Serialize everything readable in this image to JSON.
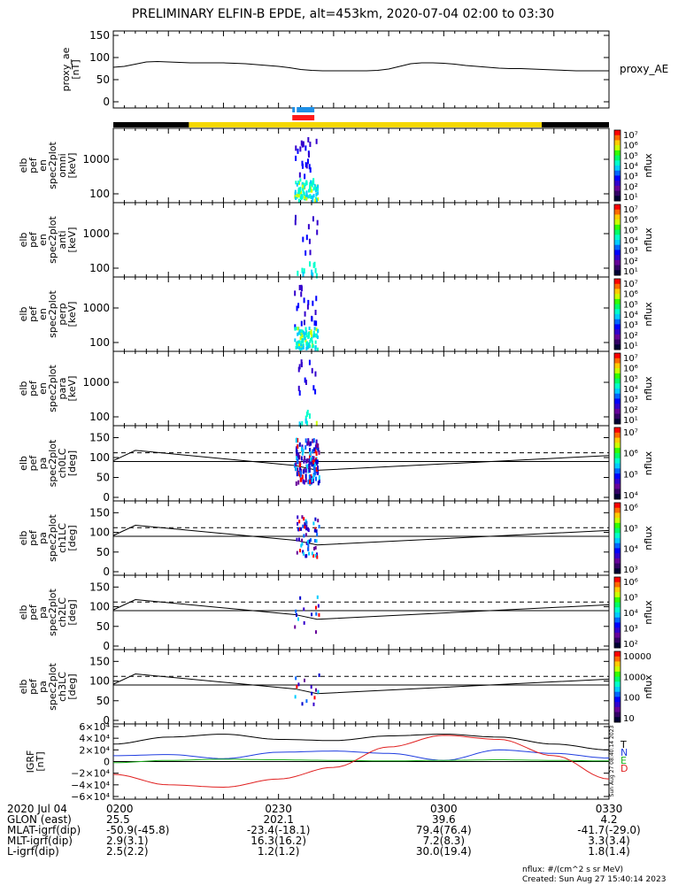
{
  "title": "PRELIMINARY ELFIN-B EPDE, alt=453km, 2020-07-04 02:00 to 03:30",
  "proxy_panel": {
    "ylabel_lines": [
      "proxy_ae",
      "[nT]"
    ],
    "yticks": [
      "150",
      "100",
      "50",
      "0"
    ],
    "right_label": "proxy_AE",
    "series": {
      "x": [
        0,
        2,
        4,
        6,
        8,
        10,
        12,
        14,
        16,
        18,
        20,
        22,
        24,
        26,
        28,
        30,
        32,
        34,
        36,
        38,
        40,
        42,
        44,
        46,
        48,
        50,
        52,
        54,
        56,
        58,
        60,
        62,
        64,
        66,
        68,
        70,
        72,
        74,
        76,
        78,
        80,
        82,
        84,
        86,
        88,
        90
      ],
      "y": [
        78,
        80,
        85,
        90,
        91,
        90,
        89,
        88,
        88,
        88,
        88,
        87,
        86,
        84,
        82,
        80,
        77,
        73,
        71,
        70,
        70,
        70,
        70,
        70,
        71,
        74,
        80,
        86,
        88,
        88,
        87,
        85,
        82,
        80,
        78,
        76,
        75,
        75,
        74,
        73,
        72,
        71,
        70,
        70,
        70,
        70
      ]
    }
  },
  "bars": {
    "orbit_segments": [
      {
        "start": 0,
        "end": 9,
        "color": "#000000"
      },
      {
        "start": 9,
        "end": 51,
        "color": "#f5d800"
      },
      {
        "start": 51,
        "end": 59,
        "color": "#000000"
      }
    ],
    "science_blue": {
      "start": 32.5,
      "end": 36.5,
      "color": "#1e8fe6"
    },
    "science_red": {
      "start": 32.5,
      "end": 36.5,
      "color": "#ff1a1a"
    }
  },
  "energy_panels": [
    {
      "label_lines": [
        "elb",
        "pef",
        "en",
        "spec2plot",
        "omni",
        "[keV]"
      ],
      "yticks": [
        "1000",
        "100"
      ],
      "cbar_ticks": [
        "10<sup>7</sup>",
        "10<sup>6</sup>",
        "10<sup>5</sup>",
        "10<sup>4</sup>",
        "10<sup>3</sup>",
        "10<sup>2</sup>",
        "10<sup>1</sup>"
      ]
    },
    {
      "label_lines": [
        "elb",
        "pef",
        "en",
        "spec2plot",
        "anti",
        "[keV]"
      ],
      "yticks": [
        "1000",
        "100"
      ],
      "cbar_ticks": []
    },
    {
      "label_lines": [
        "elb",
        "pef",
        "en",
        "spec2plot",
        "perp",
        "[keV]"
      ],
      "yticks": [
        "1000",
        "100"
      ],
      "cbar_ticks": []
    },
    {
      "label_lines": [
        "elb",
        "pef",
        "en",
        "spec2plot",
        "para",
        "[keV]"
      ],
      "yticks": [
        "1000",
        "100"
      ],
      "cbar_ticks": []
    }
  ],
  "energy_cbar_labels": [
    "10⁷",
    "10⁶",
    "10⁵",
    "10⁴",
    "10³",
    "10²",
    "10¹"
  ],
  "pitch_panels": [
    {
      "label_lines": [
        "elb",
        "pef",
        "pa",
        "spec2plot",
        "ch0LC",
        "[deg]"
      ],
      "yticks": [
        "150",
        "100",
        "50",
        "0"
      ],
      "cbar_labels": [
        "10⁷",
        "10⁶",
        "10⁵",
        "10⁴"
      ]
    },
    {
      "label_lines": [
        "elb",
        "pef",
        "pa",
        "spec2plot",
        "ch1LC",
        "[deg]"
      ],
      "yticks": [
        "150",
        "100",
        "50",
        "0"
      ],
      "cbar_labels": [
        "10⁶",
        "10⁵",
        "10⁴",
        "10³"
      ]
    },
    {
      "label_lines": [
        "elb",
        "pef",
        "pa",
        "spec2plot",
        "ch2LC",
        "[deg]"
      ],
      "yticks": [
        "150",
        "100",
        "50",
        "0"
      ],
      "cbar_labels": [
        "10⁶",
        "10⁵",
        "10⁴",
        "10³",
        "10²"
      ]
    },
    {
      "label_lines": [
        "elb",
        "pef",
        "pa",
        "spec2plot",
        "ch3LC",
        "[deg]"
      ],
      "yticks": [
        "150",
        "100",
        "50",
        "0"
      ],
      "cbar_labels": [
        "10000",
        "1000",
        "100",
        "10"
      ]
    }
  ],
  "cbar_title": "nflux",
  "igrf_panel": {
    "ylabel_lines": [
      "IGRF",
      "[nT]"
    ],
    "yticks": [
      "6×10⁴",
      "4×10⁴",
      "2×10⁴",
      "0",
      "−2×10⁴",
      "−4×10⁴",
      "−6×10⁴"
    ],
    "legend": [
      {
        "label": "T",
        "color": "#000000"
      },
      {
        "label": "N",
        "color": "#1f3de0"
      },
      {
        "label": "E",
        "color": "#1db31d"
      },
      {
        "label": "D",
        "color": "#e01f1f"
      }
    ],
    "side_stamp": "Sun Aug 27 08:40:14 2023"
  },
  "xaxis": {
    "ticks": [
      "0200",
      "0230",
      "0300",
      "0330"
    ],
    "tick_minutes": [
      0,
      30,
      60,
      90
    ]
  },
  "footer_rows": [
    {
      "label": "2020 Jul 04",
      "values": [
        "0200",
        "0230",
        "0300",
        "0330"
      ]
    },
    {
      "label": "GLON (east)",
      "values": [
        "25.5",
        "202.1",
        "39.6",
        "4.2"
      ]
    },
    {
      "label": "MLAT-igrf(dip)",
      "values": [
        "-50.9(-45.8)",
        "-23.4(-18.1)",
        "79.4(76.4)",
        "-41.7(-29.0)"
      ]
    },
    {
      "label": "MLT-igrf(dip)",
      "values": [
        "2.9(3.1)",
        "16.3(16.2)",
        "7.2(8.3)",
        "3.3(3.4)"
      ]
    },
    {
      "label": "L-igrf(dip)",
      "values": [
        "2.5(2.2)",
        "1.2(1.2)",
        "30.0(19.4)",
        "1.8(1.4)"
      ]
    }
  ],
  "footnote_units": "nflux: #/(cm^2 s sr MeV)",
  "footnote_created": "Created: Sun Aug 27 15:40:14 2023",
  "chart_data": [
    {
      "type": "line",
      "ylabel": "proxy_ae [nT]",
      "ylim": [
        0,
        150
      ],
      "x_minutes": [
        0,
        10,
        20,
        30,
        40,
        50,
        60,
        70,
        80,
        90
      ],
      "series": [
        {
          "name": "proxy_AE",
          "values": [
            78,
            90,
            88,
            80,
            70,
            74,
            88,
            76,
            72,
            70
          ]
        }
      ]
    },
    {
      "type": "heatmap",
      "ylabel": "[keV]",
      "active_interval_minutes": [
        33,
        37
      ]
    },
    {
      "type": "line",
      "ylabel": "IGRF [nT]",
      "ylim": [
        -60000,
        60000
      ],
      "x_minutes": [
        0,
        10,
        20,
        30,
        40,
        50,
        60,
        70,
        80,
        90
      ],
      "series": [
        {
          "name": "T",
          "values": [
            30000,
            42000,
            47000,
            38000,
            36000,
            44000,
            47000,
            42000,
            30000,
            20000
          ]
        },
        {
          "name": "N",
          "values": [
            10000,
            12000,
            5000,
            16000,
            18000,
            14000,
            2000,
            20000,
            14000,
            6000
          ]
        },
        {
          "name": "E",
          "values": [
            -2000,
            2000,
            4000,
            3000,
            2000,
            1000,
            2000,
            3000,
            2000,
            1000
          ]
        },
        {
          "name": "D",
          "values": [
            -22000,
            -40000,
            -44000,
            -30000,
            -10000,
            25000,
            45000,
            38000,
            10000,
            -30000
          ]
        }
      ]
    }
  ]
}
